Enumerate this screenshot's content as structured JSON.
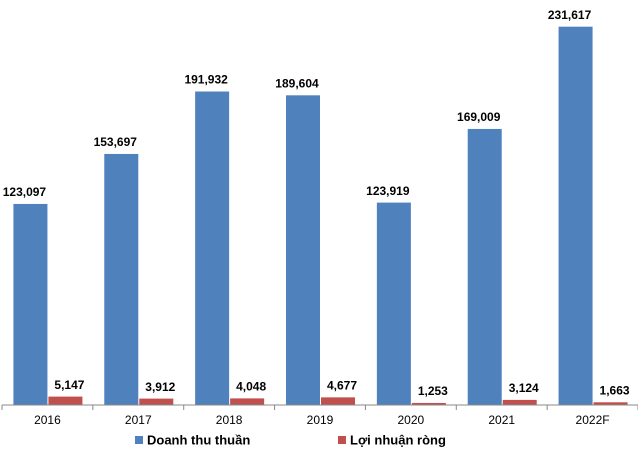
{
  "chart_data": {
    "type": "bar",
    "categories": [
      "2016",
      "2017",
      "2018",
      "2019",
      "2020",
      "2021",
      "2022F"
    ],
    "series": [
      {
        "name": "Doanh thu thuần",
        "color": "#4f81bd",
        "values": [
          123097,
          153697,
          191932,
          189604,
          123919,
          169009,
          231617
        ],
        "value_labels": [
          "123,097",
          "153,697",
          "191,932",
          "189,604",
          "123,919",
          "169,009",
          "231,617"
        ]
      },
      {
        "name": "Lợi nhuận ròng",
        "color": "#c0504d",
        "values": [
          5147,
          3912,
          4048,
          4677,
          1253,
          3124,
          1663
        ],
        "value_labels": [
          "5,147",
          "3,912",
          "4,048",
          "4,677",
          "1,253",
          "3,124",
          "1,663"
        ]
      }
    ],
    "ylim": [
      0,
      240000
    ],
    "legend": "bottom"
  }
}
